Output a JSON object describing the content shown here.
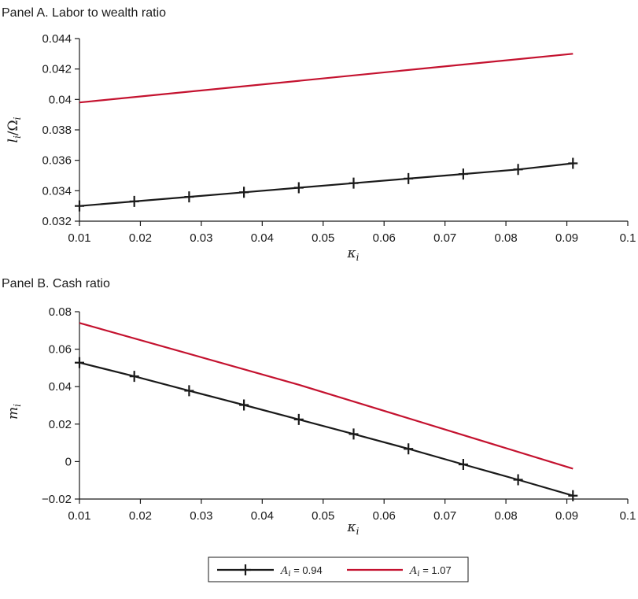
{
  "chart_data": [
    {
      "type": "line",
      "title": "Panel A. Labor to wealth ratio",
      "xlabel": "κi",
      "ylabel": "li/Ωi",
      "xlim": [
        0.01,
        0.1
      ],
      "ylim": [
        0.032,
        0.044
      ],
      "x_ticks": [
        "0.01",
        "0.02",
        "0.03",
        "0.04",
        "0.05",
        "0.06",
        "0.07",
        "0.08",
        "0.09",
        "0.1"
      ],
      "y_ticks": [
        "0.032",
        "0.034",
        "0.036",
        "0.038",
        "0.04",
        "0.042",
        "0.044"
      ],
      "series": [
        {
          "name": "Ai = 0.94",
          "color": "#1a1a1a",
          "marker": "plus",
          "x": [
            0.01,
            0.019,
            0.028,
            0.037,
            0.046,
            0.055,
            0.064,
            0.073,
            0.082,
            0.091
          ],
          "y": [
            0.033,
            0.0333,
            0.0336,
            0.0339,
            0.0342,
            0.0345,
            0.0348,
            0.0351,
            0.0354,
            0.0358
          ]
        },
        {
          "name": "Ai = 1.07",
          "color": "#c4122f",
          "marker": "none",
          "x": [
            0.01,
            0.091
          ],
          "y": [
            0.0398,
            0.043
          ]
        }
      ]
    },
    {
      "type": "line",
      "title": "Panel B. Cash ratio",
      "xlabel": "κi",
      "ylabel": "mi",
      "xlim": [
        0.01,
        0.1
      ],
      "ylim": [
        -0.02,
        0.08
      ],
      "x_ticks": [
        "0.01",
        "0.02",
        "0.03",
        "0.04",
        "0.05",
        "0.06",
        "0.07",
        "0.08",
        "0.09",
        "0.1"
      ],
      "y_ticks": [
        "−0.02",
        "0",
        "0.02",
        "0.04",
        "0.06",
        "0.08"
      ],
      "series": [
        {
          "name": "Ai = 0.94",
          "color": "#1a1a1a",
          "marker": "plus",
          "x": [
            0.01,
            0.019,
            0.028,
            0.037,
            0.046,
            0.055,
            0.064,
            0.073,
            0.082,
            0.091
          ],
          "y": [
            0.0528,
            0.0455,
            0.0378,
            0.0302,
            0.0225,
            0.0147,
            0.0068,
            -0.0015,
            -0.0097,
            -0.0182
          ]
        },
        {
          "name": "Ai = 1.07",
          "color": "#c4122f",
          "marker": "none",
          "x": [
            0.01,
            0.046,
            0.091
          ],
          "y": [
            0.074,
            0.041,
            -0.0038
          ]
        }
      ]
    }
  ],
  "legend": {
    "placement": "bottom-center",
    "items": [
      {
        "var": "A",
        "sub": "i",
        "eq": " = 0.94",
        "color": "#1a1a1a",
        "marker": "plus"
      },
      {
        "var": "A",
        "sub": "i",
        "eq": " = 1.07",
        "color": "#c4122f",
        "marker": "none"
      }
    ]
  }
}
